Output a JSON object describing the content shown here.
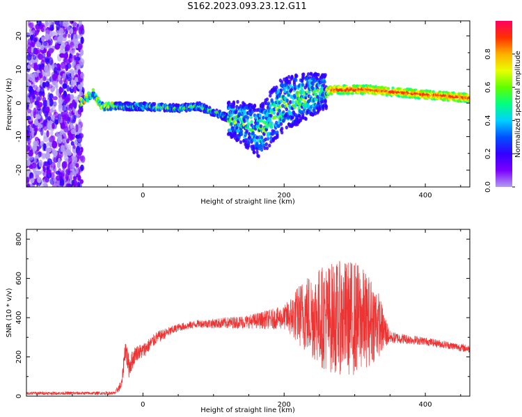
{
  "title": "S162.2023.093.23.12.G11",
  "colors": {
    "snr_line": "#ee3333",
    "colormap": [
      "#ffffff",
      "#b39cf0",
      "#7b00ff",
      "#3300ff",
      "#0050ff",
      "#00d0ff",
      "#00ff80",
      "#60ff00",
      "#e8ff00",
      "#ffb000",
      "#ff3000",
      "#ff0060"
    ]
  },
  "chart_data": [
    {
      "type": "heatmap",
      "title": "",
      "xlabel": "Height of straight line (km)",
      "ylabel": "Frequency (Hz)",
      "xlim": [
        -165,
        463
      ],
      "ylim": [
        -25,
        24.5
      ],
      "xticks": [
        0,
        200,
        400
      ],
      "yticks": [
        -20,
        -10,
        0,
        10,
        20
      ],
      "colorbar": {
        "label": "Normalized spectral amplitude",
        "range": [
          0.0,
          1.0
        ],
        "ticks": [
          "0.0",
          "0.2",
          "0.4",
          "0.6",
          "0.8"
        ]
      },
      "ridge": {
        "x": [
          -165,
          -90,
          -70,
          -60,
          -40,
          0,
          50,
          80,
          110,
          140,
          165,
          195,
          230,
          270,
          320,
          400,
          463
        ],
        "y": [
          0,
          0,
          3,
          -1,
          -1,
          -1,
          -1.5,
          -1,
          -3.5,
          -6,
          -8.5,
          -1,
          2,
          4,
          4,
          2.5,
          1.5
        ]
      }
    },
    {
      "type": "line",
      "title": "",
      "xlabel": "Height of straight line (km)",
      "ylabel": "SNR (10 * v/v)",
      "xlim": [
        -165,
        463
      ],
      "ylim": [
        0,
        850
      ],
      "xticks": [
        0,
        200,
        400
      ],
      "yticks": [
        0,
        200,
        400,
        600,
        800
      ],
      "series": [
        {
          "x": [
            -165,
            -40,
            -30,
            -25,
            -20,
            -10,
            0,
            20,
            50,
            80,
            100,
            150,
            200,
            230,
            260,
            300,
            330,
            350,
            400,
            463
          ],
          "y": [
            15,
            15,
            60,
            250,
            150,
            220,
            230,
            300,
            350,
            370,
            370,
            380,
            400,
            420,
            400,
            400,
            380,
            300,
            280,
            240
          ],
          "spread": [
            8,
            8,
            30,
            60,
            60,
            40,
            40,
            30,
            20,
            20,
            25,
            35,
            60,
            200,
            280,
            300,
            200,
            30,
            20,
            20
          ]
        }
      ]
    }
  ]
}
